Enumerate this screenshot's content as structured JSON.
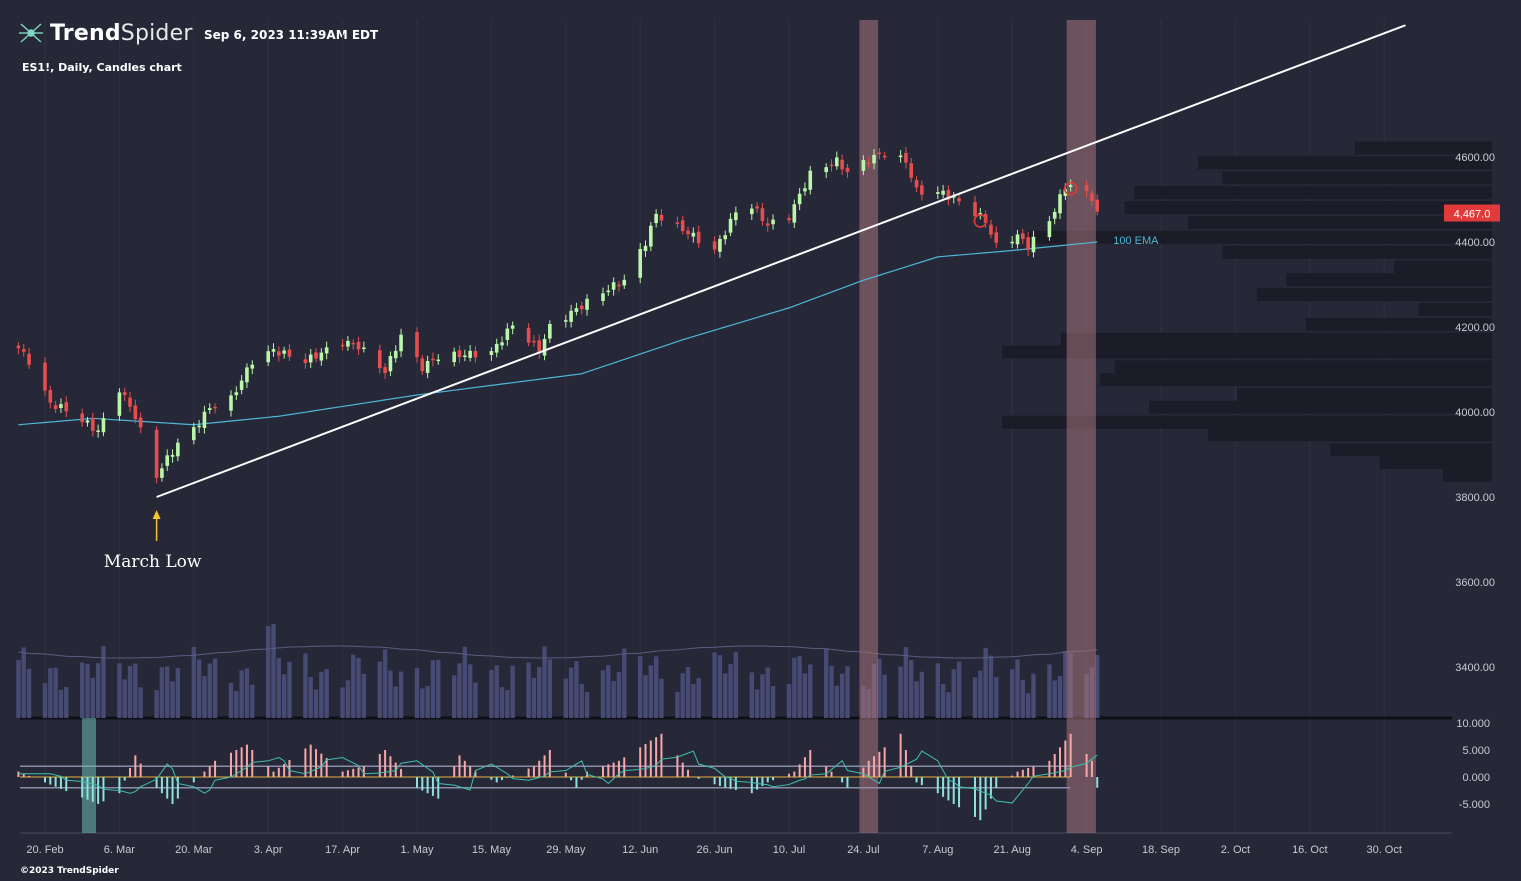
{
  "header": {
    "brand_bold": "Trend",
    "brand_light": "Spider",
    "datetime": "Sep 6, 2023 11:39AM EDT",
    "subtitle": "ES1!, Daily, Candles chart"
  },
  "footer": {
    "copyright": "©2023 TrendSpider"
  },
  "colors": {
    "background": "#262838",
    "up_candle": "#b9f6a8",
    "down_candle": "#e84d4d",
    "ema": "#4fb6d6",
    "trendline": "#ffffff",
    "highlight_band": "#a8757c",
    "volume": "#474a72",
    "volume_profile": "#1b1c27",
    "osc_pos": "#f7a7a7",
    "osc_neg": "#8fe1dc",
    "price_badge": "#e03a3a"
  },
  "chart_data": {
    "type": "candlestick",
    "symbol": "ES1!",
    "timeframe": "Daily",
    "price_axis": {
      "ticks": [
        "4600.00",
        "4400.00",
        "4200.00",
        "4000.00",
        "3800.00",
        "3600.00",
        "3400.00"
      ],
      "range": [
        3300,
        4900
      ]
    },
    "last_price": "4,467.0",
    "x_axis": {
      "ticks": [
        "20. Feb",
        "6. Mar",
        "20. Mar",
        "3. Apr",
        "17. Apr",
        "1. May",
        "15. May",
        "29. May",
        "12. Jun",
        "26. Jun",
        "10. Jul",
        "24. Jul",
        "7. Aug",
        "21. Aug",
        "4. Sep",
        "18. Sep",
        "2. Oct",
        "16. Oct",
        "30. Oct"
      ]
    },
    "ohlc_knots": [
      [
        "2023-02-15",
        4150
      ],
      [
        "2023-02-17",
        4120
      ],
      [
        "2023-02-21",
        4020
      ],
      [
        "2023-02-24",
        4005
      ],
      [
        "2023-03-02",
        3955
      ],
      [
        "2023-03-06",
        4055
      ],
      [
        "2023-03-09",
        3990
      ],
      [
        "2023-03-13",
        3850
      ],
      [
        "2023-03-15",
        3890
      ],
      [
        "2023-03-17",
        3925
      ],
      [
        "2023-03-20",
        3960
      ],
      [
        "2023-03-23",
        4010
      ],
      [
        "2023-03-27",
        4030
      ],
      [
        "2023-03-31",
        4120
      ],
      [
        "2023-04-04",
        4145
      ],
      [
        "2023-04-10",
        4120
      ],
      [
        "2023-04-17",
        4165
      ],
      [
        "2023-04-20",
        4155
      ],
      [
        "2023-04-25",
        4095
      ],
      [
        "2023-04-28",
        4180
      ],
      [
        "2023-05-02",
        4105
      ],
      [
        "2023-05-05",
        4130
      ],
      [
        "2023-05-10",
        4135
      ],
      [
        "2023-05-15",
        4140
      ],
      [
        "2023-05-19",
        4205
      ],
      [
        "2023-05-24",
        4145
      ],
      [
        "2023-05-26",
        4200
      ],
      [
        "2023-06-01",
        4250
      ],
      [
        "2023-06-06",
        4290
      ],
      [
        "2023-06-09",
        4310
      ],
      [
        "2023-06-13",
        4400
      ],
      [
        "2023-06-15",
        4465
      ],
      [
        "2023-06-20",
        4430
      ],
      [
        "2023-06-26",
        4380
      ],
      [
        "2023-06-30",
        4470
      ],
      [
        "2023-07-03",
        4485
      ],
      [
        "2023-07-06",
        4440
      ],
      [
        "2023-07-10",
        4460
      ],
      [
        "2023-07-14",
        4560
      ],
      [
        "2023-07-19",
        4590
      ],
      [
        "2023-07-21",
        4565
      ],
      [
        "2023-07-26",
        4600
      ],
      [
        "2023-07-28",
        4610
      ],
      [
        "2023-08-01",
        4590
      ],
      [
        "2023-08-03",
        4520
      ],
      [
        "2023-08-08",
        4515
      ],
      [
        "2023-08-11",
        4495
      ],
      [
        "2023-08-16",
        4450
      ],
      [
        "2023-08-18",
        4390
      ],
      [
        "2023-08-22",
        4415
      ],
      [
        "2023-08-24",
        4390
      ],
      [
        "2023-08-28",
        4450
      ],
      [
        "2023-08-31",
        4530
      ],
      [
        "2023-09-01",
        4535
      ],
      [
        "2023-09-05",
        4505
      ],
      [
        "2023-09-06",
        4467
      ]
    ],
    "ema_100": {
      "label": "100 EMA",
      "knots": [
        [
          "2023-02-15",
          3970
        ],
        [
          "2023-03-01",
          3985
        ],
        [
          "2023-03-20",
          3970
        ],
        [
          "2023-04-05",
          3990
        ],
        [
          "2023-05-01",
          4040
        ],
        [
          "2023-06-01",
          4090
        ],
        [
          "2023-06-20",
          4170
        ],
        [
          "2023-07-10",
          4245
        ],
        [
          "2023-07-24",
          4310
        ],
        [
          "2023-08-07",
          4365
        ],
        [
          "2023-08-21",
          4380
        ],
        [
          "2023-09-06",
          4400
        ]
      ]
    },
    "trendline": {
      "start": [
        "2023-03-13",
        3800
      ],
      "end": [
        "2023-11-03",
        4910
      ]
    },
    "annotation": {
      "text": "March Low",
      "date": "2023-03-13",
      "price": 3800
    },
    "highlight_bands": [
      {
        "start": "2023-07-24",
        "end": "2023-07-26"
      },
      {
        "start": "2023-09-01",
        "end": "2023-09-05"
      }
    ],
    "marked_candles": [
      "2023-08-15",
      "2023-09-01"
    ],
    "volume_profile": [
      {
        "price": 4620,
        "level": 0.28
      },
      {
        "price": 4585,
        "level": 0.6
      },
      {
        "price": 4550,
        "level": 0.55
      },
      {
        "price": 4515,
        "level": 0.73
      },
      {
        "price": 4480,
        "level": 0.75
      },
      {
        "price": 4445,
        "level": 0.62
      },
      {
        "price": 4410,
        "level": 0.95
      },
      {
        "price": 4375,
        "level": 0.55
      },
      {
        "price": 4340,
        "level": 0.2
      },
      {
        "price": 4310,
        "level": 0.42
      },
      {
        "price": 4275,
        "level": 0.48
      },
      {
        "price": 4240,
        "level": 0.15
      },
      {
        "price": 4205,
        "level": 0.38
      },
      {
        "price": 4170,
        "level": 0.88
      },
      {
        "price": 4140,
        "level": 1.0
      },
      {
        "price": 4105,
        "level": 0.77
      },
      {
        "price": 4075,
        "level": 0.8
      },
      {
        "price": 4040,
        "level": 0.52
      },
      {
        "price": 4010,
        "level": 0.7
      },
      {
        "price": 3975,
        "level": 1.0
      },
      {
        "price": 3945,
        "level": 0.58
      },
      {
        "price": 3910,
        "level": 0.33
      },
      {
        "price": 3880,
        "level": 0.23
      },
      {
        "price": 3850,
        "level": 0.1
      }
    ],
    "oscillator": {
      "ticks": [
        "10.000",
        "5.000",
        "0.000",
        "-5.000"
      ],
      "range": [
        -8,
        11
      ],
      "levels": [
        2,
        -2
      ],
      "knots": [
        [
          "2023-02-15",
          1
        ],
        [
          "2023-02-20",
          -1
        ],
        [
          "2023-03-02",
          -5
        ],
        [
          "2023-03-06",
          -3
        ],
        [
          "2023-03-09",
          4
        ],
        [
          "2023-03-13",
          -2
        ],
        [
          "2023-03-16",
          -5
        ],
        [
          "2023-03-20",
          -1
        ],
        [
          "2023-03-24",
          3
        ],
        [
          "2023-03-30",
          6
        ],
        [
          "2023-04-04",
          1
        ],
        [
          "2023-04-11",
          6
        ],
        [
          "2023-04-17",
          1
        ],
        [
          "2023-04-21",
          2
        ],
        [
          "2023-04-25",
          5
        ],
        [
          "2023-05-01",
          -2
        ],
        [
          "2023-05-05",
          -4
        ],
        [
          "2023-05-09",
          4
        ],
        [
          "2023-05-12",
          1
        ],
        [
          "2023-05-16",
          -1
        ],
        [
          "2023-05-23",
          2
        ],
        [
          "2023-05-26",
          5
        ],
        [
          "2023-05-31",
          -2
        ],
        [
          "2023-06-02",
          1
        ],
        [
          "2023-06-08",
          3
        ],
        [
          "2023-06-16",
          8
        ],
        [
          "2023-06-22",
          0
        ],
        [
          "2023-06-28",
          -2
        ],
        [
          "2023-07-03",
          -3
        ],
        [
          "2023-07-06",
          -1
        ],
        [
          "2023-07-11",
          1
        ],
        [
          "2023-07-14",
          5
        ],
        [
          "2023-07-18",
          1
        ],
        [
          "2023-07-21",
          -2
        ],
        [
          "2023-07-25",
          3
        ],
        [
          "2023-07-31",
          8
        ],
        [
          "2023-08-03",
          -1
        ],
        [
          "2023-08-07",
          -3
        ],
        [
          "2023-08-10",
          -5
        ],
        [
          "2023-08-15",
          -8
        ],
        [
          "2023-08-18",
          -2
        ],
        [
          "2023-08-22",
          1
        ],
        [
          "2023-08-28",
          3
        ],
        [
          "2023-09-01",
          8
        ],
        [
          "2023-09-05",
          3
        ],
        [
          "2023-09-06",
          -2
        ]
      ]
    }
  }
}
